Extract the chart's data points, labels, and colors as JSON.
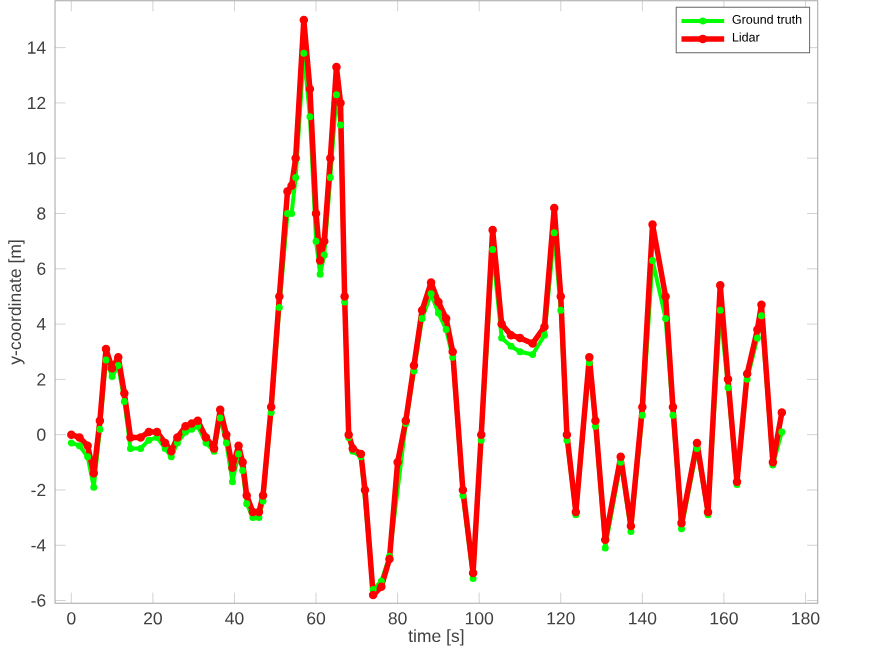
{
  "chart_data": {
    "type": "line",
    "xlabel": "time [s]",
    "ylabel": "y-coordinate [m]",
    "x": [
      0,
      2,
      4,
      5.5,
      7,
      8.5,
      10,
      11.5,
      13,
      14.5,
      17,
      19,
      21,
      23,
      24.5,
      26,
      28,
      29.5,
      31,
      33,
      35,
      36.5,
      38,
      39.5,
      41,
      42,
      43,
      44.5,
      46,
      47,
      49,
      51,
      53,
      54,
      55,
      57,
      58.5,
      60,
      61,
      62,
      63.5,
      65,
      66,
      67,
      68,
      69,
      71,
      72,
      74,
      76,
      78,
      80,
      82,
      84,
      86,
      88.2,
      90,
      91.9,
      93.5,
      96,
      98.5,
      100.5,
      103.3,
      105.5,
      107.8,
      110,
      113.1,
      116,
      118.4,
      120,
      121.5,
      123.7,
      127,
      128.5,
      130.9,
      134.7,
      137.2,
      140,
      142.5,
      145.7,
      147.5,
      149.6,
      153.4,
      156.1,
      159.1,
      161,
      163.2,
      165.7,
      168.2,
      169.2,
      172,
      174.2
    ],
    "series": [
      {
        "name": "Ground truth",
        "color": "#00ff00",
        "values": [
          -0.3,
          -0.4,
          -0.8,
          -1.9,
          0.2,
          2.7,
          2.1,
          2.5,
          1.2,
          -0.5,
          -0.5,
          -0.2,
          -0.1,
          -0.5,
          -0.8,
          -0.3,
          0.1,
          0.2,
          0.3,
          -0.3,
          -0.6,
          0.6,
          -0.3,
          -1.7,
          -0.7,
          -1.3,
          -2.5,
          -3.0,
          -3.0,
          -2.4,
          0.8,
          4.6,
          8.0,
          8.0,
          9.3,
          13.8,
          11.5,
          7.0,
          5.8,
          6.5,
          9.3,
          12.3,
          11.2,
          4.8,
          -0.1,
          -0.6,
          -0.8,
          null,
          -5.6,
          -5.3,
          -4.4,
          null,
          0.4,
          2.3,
          4.2,
          5.1,
          4.4,
          3.8,
          2.8,
          -2.2,
          -5.2,
          -0.2,
          6.7,
          3.5,
          3.2,
          3.0,
          2.9,
          3.6,
          7.3,
          4.5,
          -0.2,
          -2.9,
          2.6,
          0.3,
          -4.1,
          -1.0,
          -3.5,
          0.7,
          6.3,
          4.2,
          0.7,
          -3.4,
          -0.5,
          -2.9,
          4.5,
          1.7,
          -1.8,
          2.0,
          3.5,
          4.3,
          -1.1,
          0.1
        ]
      },
      {
        "name": "Lidar",
        "color": "#ff0000",
        "values": [
          0,
          -0.1,
          -0.4,
          -1.4,
          0.5,
          3.1,
          2.4,
          2.8,
          1.5,
          -0.1,
          -0.1,
          0.1,
          0.1,
          -0.3,
          -0.6,
          -0.1,
          0.3,
          0.4,
          0.5,
          -0.1,
          -0.5,
          0.9,
          0,
          -1.2,
          -0.4,
          -1,
          -2.2,
          -2.8,
          -2.8,
          -2.2,
          1,
          5,
          8.8,
          9,
          10,
          15,
          12.5,
          8,
          6.3,
          7,
          10,
          13.3,
          12,
          5,
          0,
          -0.5,
          -0.7,
          -2,
          -5.8,
          -5.5,
          -4.5,
          -1,
          0.5,
          2.5,
          4.5,
          5.5,
          4.8,
          4.2,
          3.0,
          -2,
          -5,
          0,
          7.4,
          4,
          3.6,
          3.5,
          3.3,
          3.9,
          8.2,
          5,
          0,
          -2.8,
          2.8,
          0.5,
          -3.8,
          -0.8,
          -3.3,
          1,
          7.6,
          5,
          1,
          -3.2,
          -0.3,
          -2.8,
          5.4,
          2,
          -1.7,
          2.2,
          3.8,
          4.7,
          -1,
          0.8
        ]
      }
    ],
    "xlim": [
      -4,
      183
    ],
    "ylim": [
      -6.1,
      15.7
    ],
    "xticks": [
      0,
      20,
      40,
      60,
      80,
      100,
      120,
      140,
      160,
      180
    ],
    "yticks": [
      -6,
      -4,
      -2,
      0,
      2,
      4,
      6,
      8,
      10,
      12,
      14
    ],
    "legend": "top right",
    "marker": "circle",
    "line_style": "solid"
  }
}
